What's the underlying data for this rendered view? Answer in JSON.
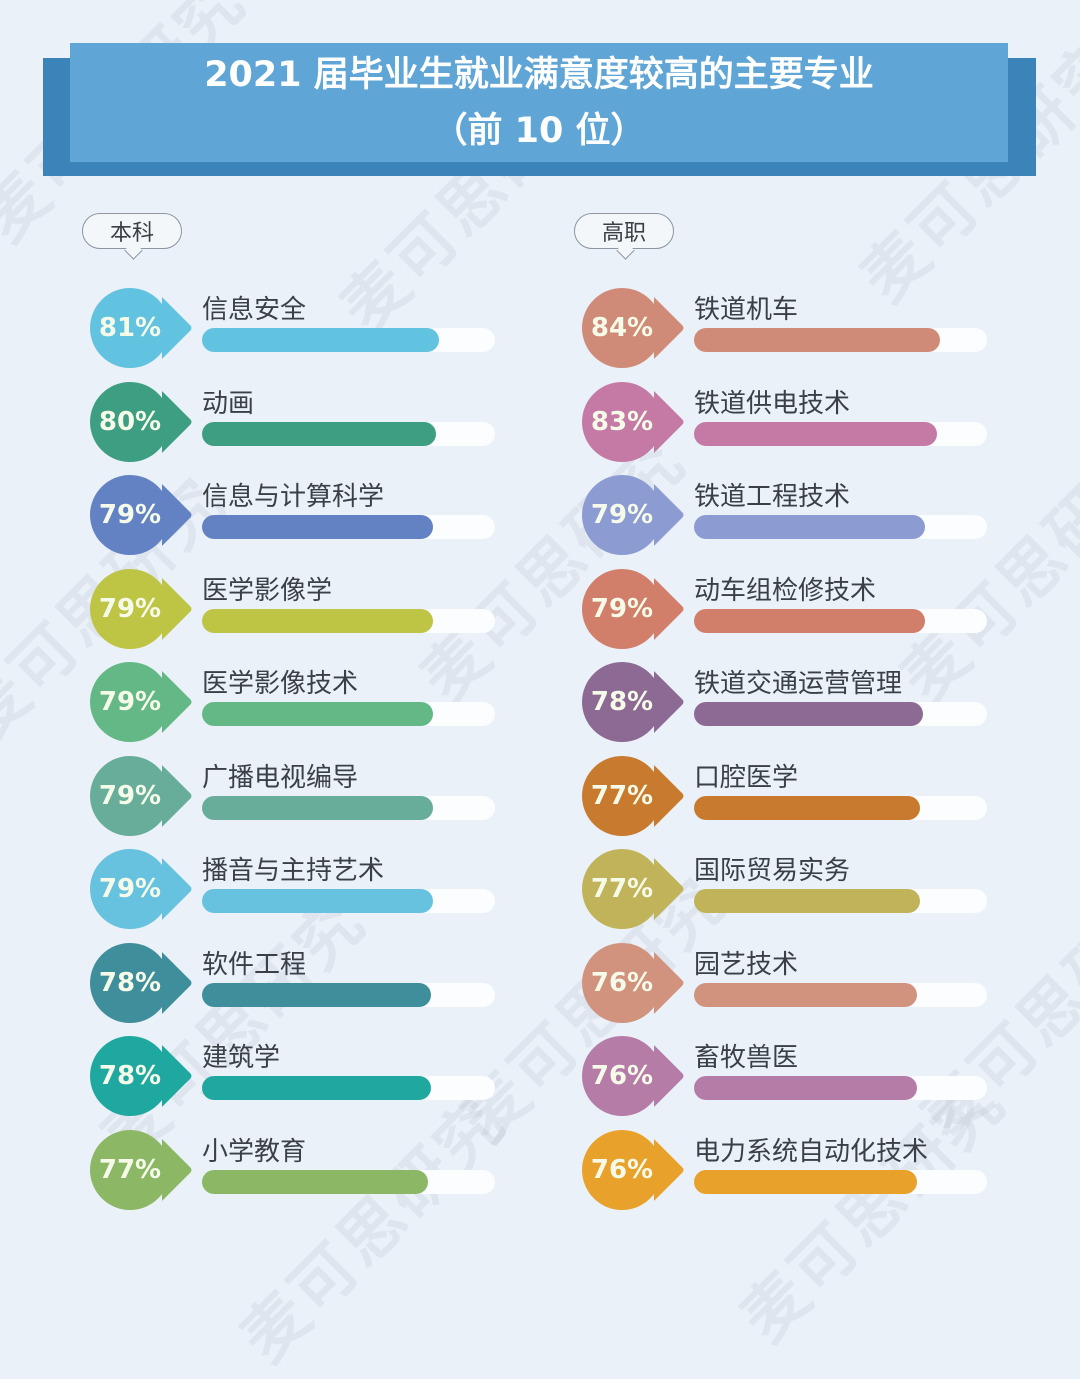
{
  "title": {
    "line1": "2021 届毕业生就业满意度较高的主要专业",
    "line2": "（前 10 位）"
  },
  "watermark_text": "麦可思研究",
  "colors": {
    "background": "#eaf1f8",
    "banner_front": "#5fa5d6",
    "banner_back": "#3a84b9",
    "track": "#fbfdff"
  },
  "groups": [
    {
      "label": "本科",
      "items": [
        {
          "name": "信息安全",
          "value": 81,
          "value_label": "81%",
          "color": "#62c3e0"
        },
        {
          "name": "动画",
          "value": 80,
          "value_label": "80%",
          "color": "#3d9e82"
        },
        {
          "name": "信息与计算科学",
          "value": 79,
          "value_label": "79%",
          "color": "#6282c4"
        },
        {
          "name": "医学影像学",
          "value": 79,
          "value_label": "79%",
          "color": "#bec444"
        },
        {
          "name": "医学影像技术",
          "value": 79,
          "value_label": "79%",
          "color": "#63b885"
        },
        {
          "name": "广播电视编导",
          "value": 79,
          "value_label": "79%",
          "color": "#67ad9a"
        },
        {
          "name": "播音与主持艺术",
          "value": 79,
          "value_label": "79%",
          "color": "#67c2df"
        },
        {
          "name": "软件工程",
          "value": 78,
          "value_label": "78%",
          "color": "#3f8e9b"
        },
        {
          "name": "建筑学",
          "value": 78,
          "value_label": "78%",
          "color": "#1fa8a0"
        },
        {
          "name": "小学教育",
          "value": 77,
          "value_label": "77%",
          "color": "#8cb866"
        }
      ]
    },
    {
      "label": "高职",
      "items": [
        {
          "name": "铁道机车",
          "value": 84,
          "value_label": "84%",
          "color": "#d08a78"
        },
        {
          "name": "铁道供电技术",
          "value": 83,
          "value_label": "83%",
          "color": "#c47aa4"
        },
        {
          "name": "铁道工程技术",
          "value": 79,
          "value_label": "79%",
          "color": "#8c9bd2"
        },
        {
          "name": "动车组检修技术",
          "value": 79,
          "value_label": "79%",
          "color": "#d17e6a"
        },
        {
          "name": "铁道交通运营管理",
          "value": 78,
          "value_label": "78%",
          "color": "#8c6a94"
        },
        {
          "name": "口腔医学",
          "value": 77,
          "value_label": "77%",
          "color": "#c87a2e"
        },
        {
          "name": "国际贸易实务",
          "value": 77,
          "value_label": "77%",
          "color": "#c1b35a"
        },
        {
          "name": "园艺技术",
          "value": 76,
          "value_label": "76%",
          "color": "#d1937e"
        },
        {
          "name": "畜牧兽医",
          "value": 76,
          "value_label": "76%",
          "color": "#b67ca8"
        },
        {
          "name": "电力系统自动化技术",
          "value": 76,
          "value_label": "76%",
          "color": "#e8a22c"
        }
      ]
    }
  ],
  "chart_data": {
    "type": "bar",
    "orientation": "horizontal",
    "title": "2021 届毕业生就业满意度较高的主要专业（前 10 位）",
    "xlabel": "",
    "ylabel": "",
    "xlim": [
      0,
      100
    ],
    "unit": "%",
    "grid": false,
    "legend": "none",
    "series": [
      {
        "name": "本科",
        "categories": [
          "信息安全",
          "动画",
          "信息与计算科学",
          "医学影像学",
          "医学影像技术",
          "广播电视编导",
          "播音与主持艺术",
          "软件工程",
          "建筑学",
          "小学教育"
        ],
        "values": [
          81,
          80,
          79,
          79,
          79,
          79,
          79,
          78,
          78,
          77
        ]
      },
      {
        "name": "高职",
        "categories": [
          "铁道机车",
          "铁道供电技术",
          "铁道工程技术",
          "动车组检修技术",
          "铁道交通运营管理",
          "口腔医学",
          "国际贸易实务",
          "园艺技术",
          "畜牧兽医",
          "电力系统自动化技术"
        ],
        "values": [
          84,
          83,
          79,
          79,
          78,
          77,
          77,
          76,
          76,
          76
        ]
      }
    ]
  }
}
